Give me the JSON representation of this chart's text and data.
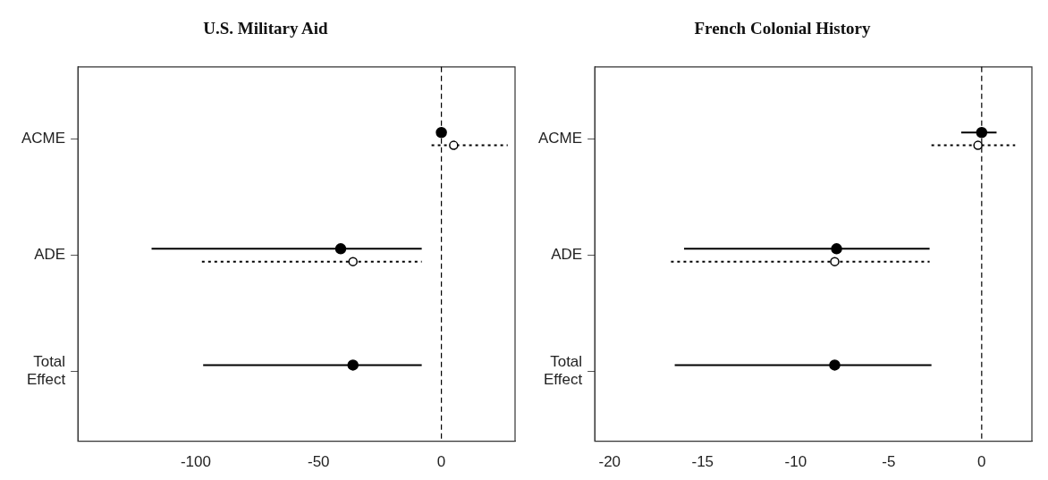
{
  "chart_data": [
    {
      "type": "scatter",
      "title": "U.S. Military Aid",
      "categories": [
        "ACME",
        "ADE",
        "Total Effect"
      ],
      "series": [
        {
          "color": "#000000",
          "line_style": "solid",
          "marker": "circle",
          "values": [
            0,
            -41,
            -36
          ],
          "errors": [
            null,
            [
              -118,
              -8
            ],
            [
              -97,
              -8
            ]
          ]
        },
        {
          "color": "#000000",
          "line_style": "dotted",
          "marker": "circle",
          "values": [
            5,
            -36,
            null
          ],
          "errors": [
            [
              -4,
              27
            ],
            [
              -97.5,
              -8
            ],
            null
          ]
        }
      ],
      "orientation": "horizontal",
      "xlim": [
        -148,
        30
      ],
      "xticks": [
        -100,
        -50,
        0
      ],
      "ref_lines": [
        {
          "axis": "x",
          "value": 0,
          "line_style": "dashed",
          "color": "#000000"
        }
      ],
      "grid": false,
      "legend": false
    },
    {
      "type": "scatter",
      "title": "French Colonial History",
      "categories": [
        "ACME",
        "ADE",
        "Total Effect"
      ],
      "series": [
        {
          "color": "#000000",
          "line_style": "solid",
          "marker": "circle",
          "values": [
            0,
            -7.8,
            -7.9
          ],
          "errors": [
            [
              -1.1,
              0.8
            ],
            [
              -16,
              -2.8
            ],
            [
              -16.5,
              -2.7
            ]
          ]
        },
        {
          "color": "#000000",
          "line_style": "dotted",
          "marker": "circle",
          "values": [
            -0.2,
            -7.9,
            null
          ],
          "errors": [
            [
              -2.7,
              1.8
            ],
            [
              -16.7,
              -2.8
            ],
            null
          ]
        }
      ],
      "orientation": "horizontal",
      "xlim": [
        -20.8,
        2.7
      ],
      "xticks": [
        -20,
        -15,
        -10,
        -5,
        0
      ],
      "ref_lines": [
        {
          "axis": "x",
          "value": 0,
          "line_style": "dashed",
          "color": "#000000"
        }
      ],
      "grid": false,
      "legend": false
    }
  ]
}
